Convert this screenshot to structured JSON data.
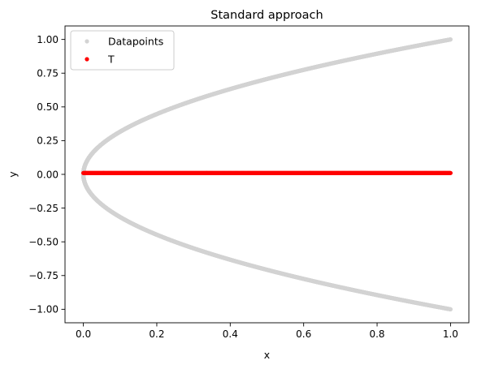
{
  "chart_data": {
    "type": "scatter",
    "title": "Standard approach",
    "xlabel": "x",
    "ylabel": "y",
    "xlim": [
      -0.05,
      1.05
    ],
    "ylim": [
      -1.1,
      1.1
    ],
    "xticks": [
      0.0,
      0.2,
      0.4,
      0.6,
      0.8,
      1.0
    ],
    "xtick_labels": [
      "0.0",
      "0.2",
      "0.4",
      "0.6",
      "0.8",
      "1.0"
    ],
    "yticks": [
      -1.0,
      -0.75,
      -0.5,
      -0.25,
      0.0,
      0.25,
      0.5,
      0.75,
      1.0
    ],
    "ytick_labels": [
      "−1.00",
      "−0.75",
      "−0.50",
      "−0.25",
      "0.00",
      "0.25",
      "0.50",
      "0.75",
      "1.00"
    ],
    "grid": false,
    "legend_position": "top-left",
    "series": [
      {
        "name": "Datapoints",
        "color": "#d3d3d3",
        "relation": "x = y^2",
        "x": [
          0.0,
          0.0025,
          0.01,
          0.0225,
          0.04,
          0.0625,
          0.09,
          0.1225,
          0.16,
          0.2025,
          0.25,
          0.3025,
          0.36,
          0.4225,
          0.49,
          0.5625,
          0.64,
          0.7225,
          0.81,
          0.9025,
          1.0
        ],
        "y_upper": [
          0.0,
          0.05,
          0.1,
          0.15,
          0.2,
          0.25,
          0.3,
          0.35,
          0.4,
          0.45,
          0.5,
          0.55,
          0.6,
          0.65,
          0.7,
          0.75,
          0.8,
          0.85,
          0.9,
          0.95,
          1.0
        ],
        "y_lower": [
          0.0,
          -0.05,
          -0.1,
          -0.15,
          -0.2,
          -0.25,
          -0.3,
          -0.35,
          -0.4,
          -0.45,
          -0.5,
          -0.55,
          -0.6,
          -0.65,
          -0.7,
          -0.75,
          -0.8,
          -0.85,
          -0.9,
          -0.95,
          -1.0
        ]
      },
      {
        "name": "T",
        "color": "#ff0000",
        "x": [
          0.0,
          0.1,
          0.2,
          0.3,
          0.4,
          0.5,
          0.6,
          0.7,
          0.8,
          0.9,
          1.0
        ],
        "y": [
          0.01,
          0.01,
          0.01,
          0.01,
          0.01,
          0.01,
          0.01,
          0.01,
          0.01,
          0.01,
          0.01
        ]
      }
    ]
  }
}
